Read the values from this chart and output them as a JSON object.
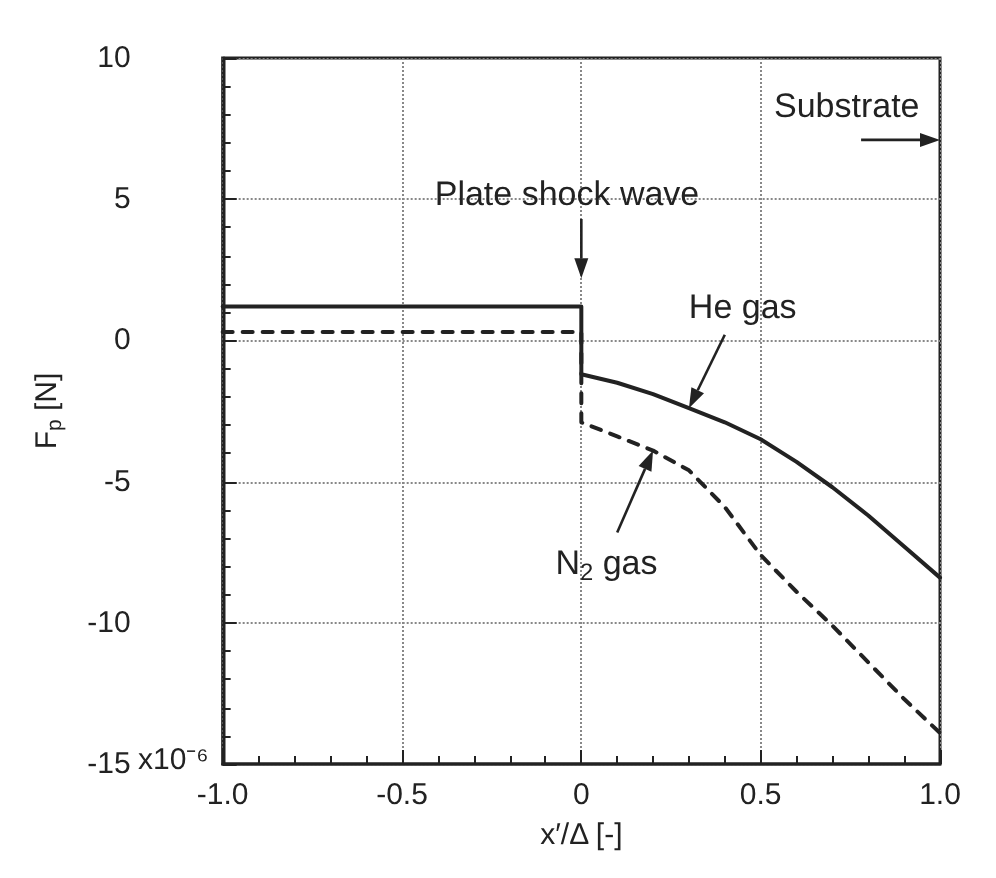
{
  "chart_data": {
    "type": "line",
    "xlabel": "x′/Δ [-]",
    "ylabel": "F$_{p}$ [N]",
    "xlim": [
      -1.0,
      1.0
    ],
    "xticks": [
      {
        "value": -1,
        "label": "-1.0"
      },
      {
        "value": -0.5,
        "label": "-0.5"
      },
      0,
      {
        "value": 0.5,
        "label": "0.5"
      },
      {
        "value": 1,
        "label": "1.0"
      }
    ],
    "ylim": [
      -15,
      10
    ],
    "yticks": [
      -15,
      -10,
      -5,
      0,
      5,
      10
    ],
    "grid": true,
    "marker": "none",
    "series": [
      {
        "color": "#222222",
        "line_style": "solid",
        "x": [
          -1,
          0,
          0,
          0.1,
          0.2,
          0.3,
          0.4,
          0.5,
          0.6,
          0.7,
          0.8,
          0.9,
          1.0
        ],
        "values": [
          1.2,
          1.2,
          -1.2,
          -1.5,
          -1.9,
          -2.4,
          -2.9,
          -3.5,
          -4.3,
          -5.2,
          -6.2,
          -7.3,
          -8.4
        ]
      },
      {
        "color": "#222222",
        "line_style": "dashed",
        "x": [
          -1,
          0,
          0,
          0.1,
          0.2,
          0.3,
          0.4,
          0.5,
          0.6,
          0.7,
          0.8,
          0.9,
          1.0
        ],
        "values": [
          0.3,
          0.3,
          -2.9,
          -3.4,
          -3.9,
          -4.6,
          -5.9,
          -7.6,
          -8.9,
          -10.1,
          -11.4,
          -12.7,
          -13.9
        ]
      }
    ],
    "annotations": [
      "Plate shock wave",
      {
        "text": "He gas",
        "x": 0.3,
        "y": -2.4
      },
      {
        "text": "N$_{2}$ gas",
        "x": 0.2,
        "y": -3.9
      },
      "Substrate",
      "x10⁻⁶"
    ]
  }
}
